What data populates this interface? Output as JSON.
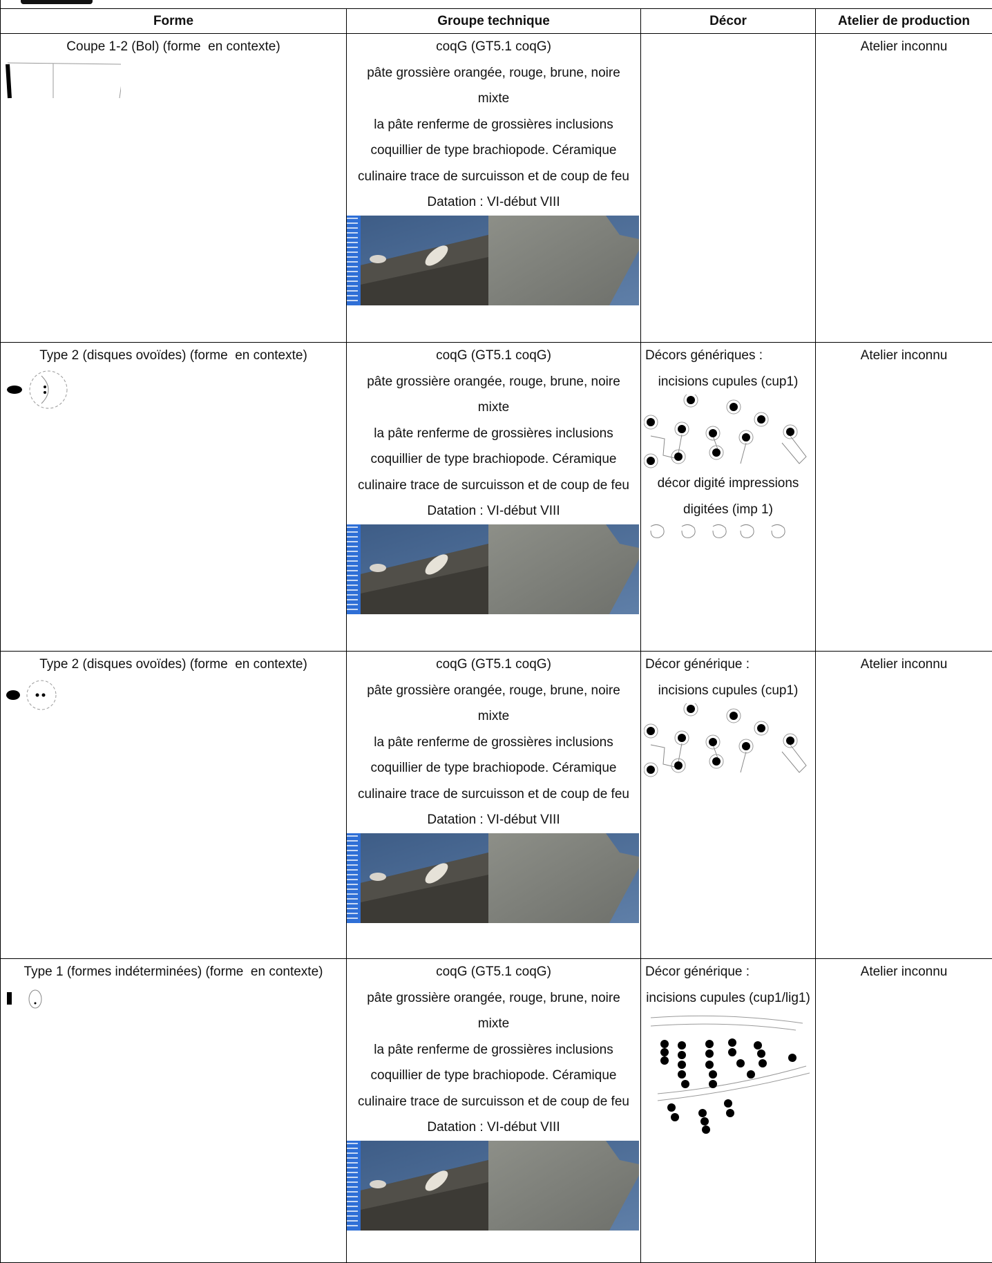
{
  "table": {
    "headers": [
      "Forme",
      "Groupe technique",
      "Décor",
      "Atelier de production"
    ],
    "rows": [
      {
        "forme": "Coupe 1-2 (Bol) (forme  en contexte)",
        "groupe": [
          "coqG (GT5.1 coqG)",
          "pâte grossière orangée, rouge, brune, noire mixte",
          "la pâte renferme de grossières inclusions coquillier de type brachiopode. Céramique culinaire trace de surcuisson et de coup de feu",
          "Datation : VI-début VIII"
        ],
        "decor": [],
        "atelier": "Atelier inconnu"
      },
      {
        "forme": "Type 2 (disques ovoïdes) (forme  en contexte)",
        "groupe": [
          "coqG (GT5.1 coqG)",
          "pâte grossière orangée, rouge, brune, noire mixte",
          "la pâte renferme de grossières inclusions coquillier de type brachiopode. Céramique culinaire trace de surcuisson et de coup de feu",
          "Datation : VI-début VIII"
        ],
        "decor": [
          "Décors génériques :",
          "incisions cupules (cup1)",
          "décor digité impressions digitées (imp 1)"
        ],
        "atelier": "Atelier inconnu"
      },
      {
        "forme": "Type 2 (disques ovoïdes) (forme  en contexte)",
        "groupe": [
          "coqG (GT5.1 coqG)",
          "pâte grossière orangée, rouge, brune, noire mixte",
          "la pâte renferme de grossières inclusions coquillier de type brachiopode. Céramique culinaire trace de surcuisson et de coup de feu",
          "Datation : VI-début VIII"
        ],
        "decor": [
          "Décor générique :",
          "incisions cupules (cup1)"
        ],
        "atelier": "Atelier inconnu"
      },
      {
        "forme": "Type 1 (formes indéterminées) (forme  en contexte)",
        "groupe": [
          "coqG (GT5.1 coqG)",
          "pâte grossière orangée, rouge, brune, noire mixte",
          "la pâte renferme de grossières inclusions coquillier de type brachiopode. Céramique culinaire trace de surcuisson et de coup de feu",
          "Datation : VI-début VIII"
        ],
        "decor": [
          "Décor générique :",
          "incisions cupules (cup1/lig1)"
        ],
        "atelier": "Atelier inconnu"
      }
    ]
  }
}
